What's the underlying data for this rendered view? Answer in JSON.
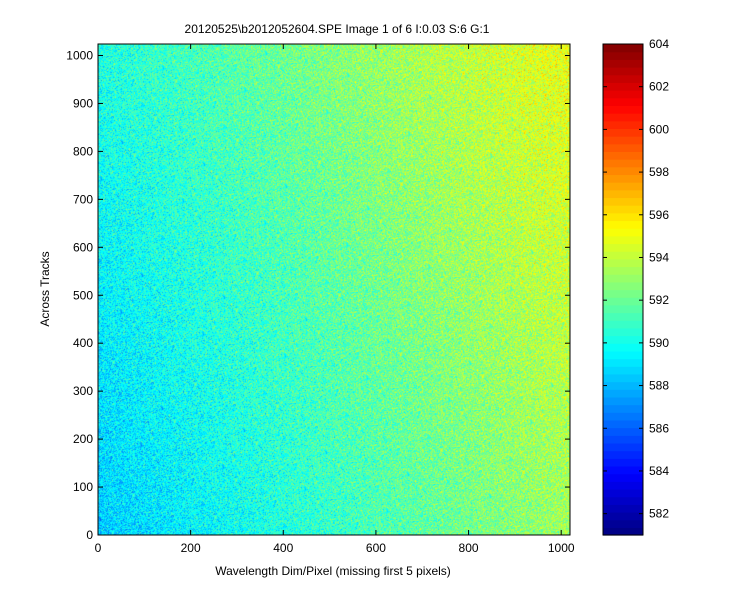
{
  "chart_data": {
    "type": "heatmap",
    "title": "20120525\\b2012052604.SPE  Image 1 of 6  I:0.03  S:6  G:1",
    "xlabel": "Wavelength Dim/Pixel (missing first 5 pixels)",
    "ylabel": "Across Tracks",
    "xlim": [
      0,
      1019
    ],
    "ylim": [
      0,
      1024
    ],
    "x_ticks": [
      0,
      200,
      400,
      600,
      800,
      1000
    ],
    "y_ticks": [
      0,
      100,
      200,
      300,
      400,
      500,
      600,
      700,
      800,
      900,
      1000
    ],
    "colormap": "jet",
    "colorbar": {
      "range": [
        581,
        604
      ],
      "ticks": [
        582,
        584,
        586,
        588,
        590,
        592,
        594,
        596,
        598,
        600,
        602,
        604
      ]
    },
    "field": {
      "base": 588.5,
      "x_gradient_per_pixel": 0.0046,
      "y_gradient_per_pixel": 0.0018,
      "low_corner": [
        0,
        0
      ],
      "high_corner": [
        1019,
        1024
      ]
    }
  }
}
